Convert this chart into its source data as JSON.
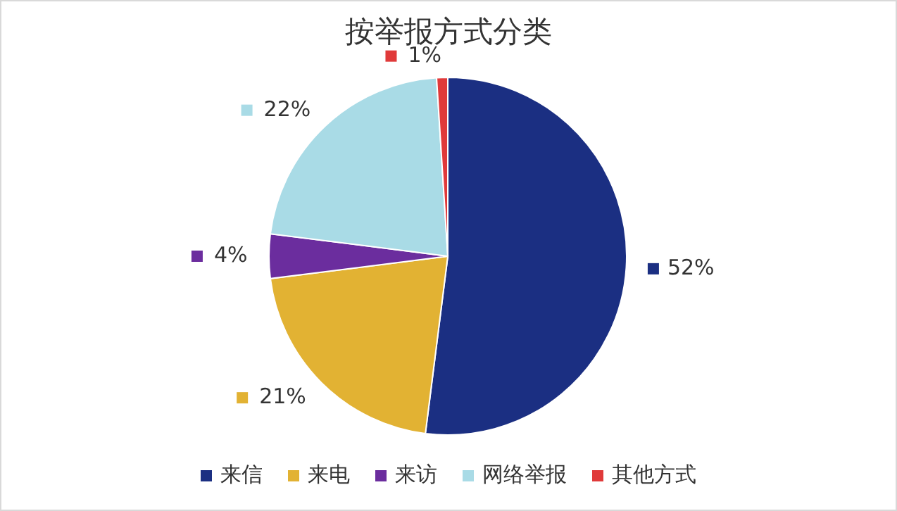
{
  "chart_data": {
    "type": "pie",
    "title": "按举报方式分类",
    "categories": [
      "来信",
      "来电",
      "来访",
      "网络举报",
      "其他方式"
    ],
    "values": [
      52,
      21,
      4,
      22,
      1
    ],
    "colors": [
      "#1b2f82",
      "#e2b233",
      "#6b2d9e",
      "#a9dbe6",
      "#e03a3a"
    ],
    "value_labels": [
      "52%",
      "21%",
      "4%",
      "22%",
      "1%"
    ],
    "legend": "bottom"
  }
}
